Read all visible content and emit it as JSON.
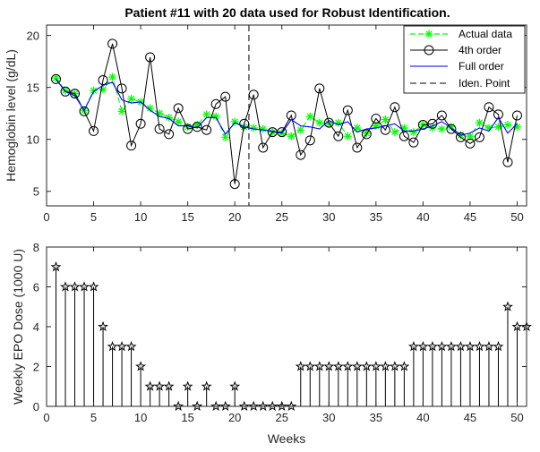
{
  "chart_data": [
    {
      "type": "line",
      "title": "Patient #11 with 20 data used for Robust Identification.",
      "xlabel": "",
      "ylabel": "Hemoglobin level (g/dL)",
      "xlim": [
        0,
        51
      ],
      "ylim": [
        3.6,
        21
      ],
      "xticks": [
        "0",
        "5",
        "10",
        "15",
        "20",
        "25",
        "30",
        "35",
        "40",
        "45",
        "50"
      ],
      "yticks": [
        "5",
        "10",
        "15",
        "20"
      ],
      "x": [
        1,
        2,
        3,
        4,
        5,
        6,
        7,
        8,
        9,
        10,
        11,
        12,
        13,
        14,
        15,
        16,
        17,
        18,
        19,
        20,
        21,
        22,
        23,
        24,
        25,
        26,
        27,
        28,
        29,
        30,
        31,
        32,
        33,
        34,
        35,
        36,
        37,
        38,
        39,
        40,
        41,
        42,
        43,
        44,
        45,
        46,
        47,
        48,
        49,
        50
      ],
      "series": [
        {
          "name": "Actual data",
          "color": "#00ff00",
          "style": "dash-star",
          "values": [
            15.9,
            14.7,
            14.4,
            12.8,
            14.7,
            14.8,
            16.0,
            12.7,
            13.9,
            13.6,
            13.0,
            12.5,
            12.1,
            11.7,
            11.2,
            11.4,
            12.4,
            12.2,
            10.2,
            11.7,
            11.2,
            11.1,
            11.0,
            10.7,
            10.6,
            10.3,
            10.9,
            12.2,
            11.6,
            11.5,
            11.6,
            10.3,
            11.1,
            10.6,
            11.3,
            11.9,
            10.7,
            11.1,
            10.7,
            11.4,
            11.1,
            11.0,
            11.2,
            10.4,
            10.3,
            11.6,
            11.1,
            11.2,
            11.4,
            11.2
          ]
        },
        {
          "name": "4th order",
          "color": "#000000",
          "style": "line-circle",
          "values": [
            15.8,
            14.6,
            14.4,
            12.7,
            10.8,
            15.7,
            19.2,
            14.9,
            9.4,
            11.5,
            17.9,
            11.0,
            10.5,
            13.0,
            11.0,
            11.2,
            10.9,
            13.4,
            14.1,
            5.7,
            11.5,
            14.3,
            9.2,
            10.7,
            10.7,
            12.3,
            8.5,
            9.9,
            14.9,
            11.6,
            10.3,
            12.8,
            9.2,
            10.5,
            12.0,
            10.9,
            13.1,
            10.3,
            9.7,
            11.4,
            11.5,
            12.3,
            11.0,
            10.2,
            9.6,
            10.2,
            13.1,
            12.4,
            7.8,
            12.3
          ]
        },
        {
          "name": "Full order",
          "color": "#0000ff",
          "style": "line",
          "values": [
            15.8,
            14.6,
            14.2,
            12.8,
            14.6,
            15.2,
            15.5,
            13.8,
            13.5,
            13.6,
            12.8,
            12.2,
            12.0,
            11.3,
            11.3,
            11.1,
            12.1,
            12.1,
            10.5,
            11.6,
            11.2,
            11.0,
            10.9,
            10.8,
            10.6,
            11.9,
            11.3,
            11.2,
            11.0,
            11.8,
            11.4,
            11.7,
            10.7,
            11.0,
            11.1,
            11.3,
            11.5,
            10.8,
            10.8,
            11.0,
            11.3,
            11.7,
            11.1,
            10.4,
            10.6,
            11.1,
            10.8,
            12.1,
            10.6,
            11.5
          ]
        }
      ],
      "identification_point": {
        "name": "Iden. Point",
        "x": 21.5
      },
      "legend": "top-right"
    },
    {
      "type": "stem",
      "title": "",
      "xlabel": "Weeks",
      "ylabel": "Weekly EPO Dose (1000 U)",
      "xlim": [
        0,
        51
      ],
      "ylim": [
        0,
        8
      ],
      "xticks": [
        "0",
        "5",
        "10",
        "15",
        "20",
        "25",
        "30",
        "35",
        "40",
        "45",
        "50"
      ],
      "yticks": [
        "0",
        "2",
        "4",
        "6",
        "8"
      ],
      "x": [
        1,
        2,
        3,
        4,
        5,
        6,
        7,
        8,
        9,
        10,
        11,
        12,
        13,
        14,
        15,
        16,
        17,
        18,
        19,
        20,
        21,
        22,
        23,
        24,
        25,
        26,
        27,
        28,
        29,
        30,
        31,
        32,
        33,
        34,
        35,
        36,
        37,
        38,
        39,
        40,
        41,
        42,
        43,
        44,
        45,
        46,
        47,
        48,
        49,
        50,
        51
      ],
      "values": [
        7,
        6,
        6,
        6,
        6,
        4,
        3,
        3,
        3,
        2,
        1,
        1,
        1,
        0,
        1,
        0,
        1,
        0,
        0,
        1,
        0,
        0,
        0,
        0,
        0,
        0,
        2,
        2,
        2,
        2,
        2,
        2,
        2,
        2,
        2,
        2,
        2,
        2,
        3,
        3,
        3,
        3,
        3,
        3,
        3,
        3,
        3,
        3,
        5,
        4,
        4
      ]
    }
  ]
}
